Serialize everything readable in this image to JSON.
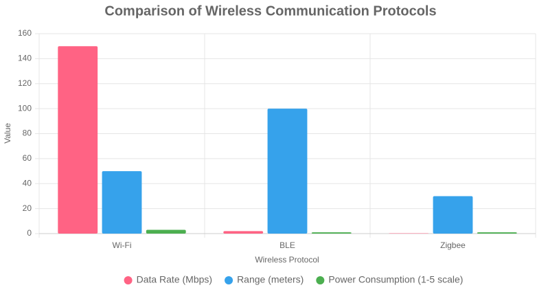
{
  "chart_data": {
    "type": "bar",
    "title": "Comparison of Wireless Communication Protocols",
    "x_label": "Wireless Protocol",
    "y_label": "Value",
    "categories": [
      "Wi-Fi",
      "BLE",
      "Zigbee"
    ],
    "series": [
      {
        "name": "Data Rate (Mbps)",
        "color": "#ff6384",
        "values": [
          150,
          2,
          0.25
        ]
      },
      {
        "name": "Range (meters)",
        "color": "#36a2eb",
        "values": [
          50,
          100,
          30
        ]
      },
      {
        "name": "Power Consumption (1-5 scale)",
        "color": "#4caf50",
        "values": [
          3,
          1,
          1
        ]
      }
    ],
    "ylim": [
      0,
      160
    ],
    "yticks": [
      0,
      20,
      40,
      60,
      80,
      100,
      120,
      140,
      160
    ],
    "grid": true,
    "legend": "bottom"
  }
}
